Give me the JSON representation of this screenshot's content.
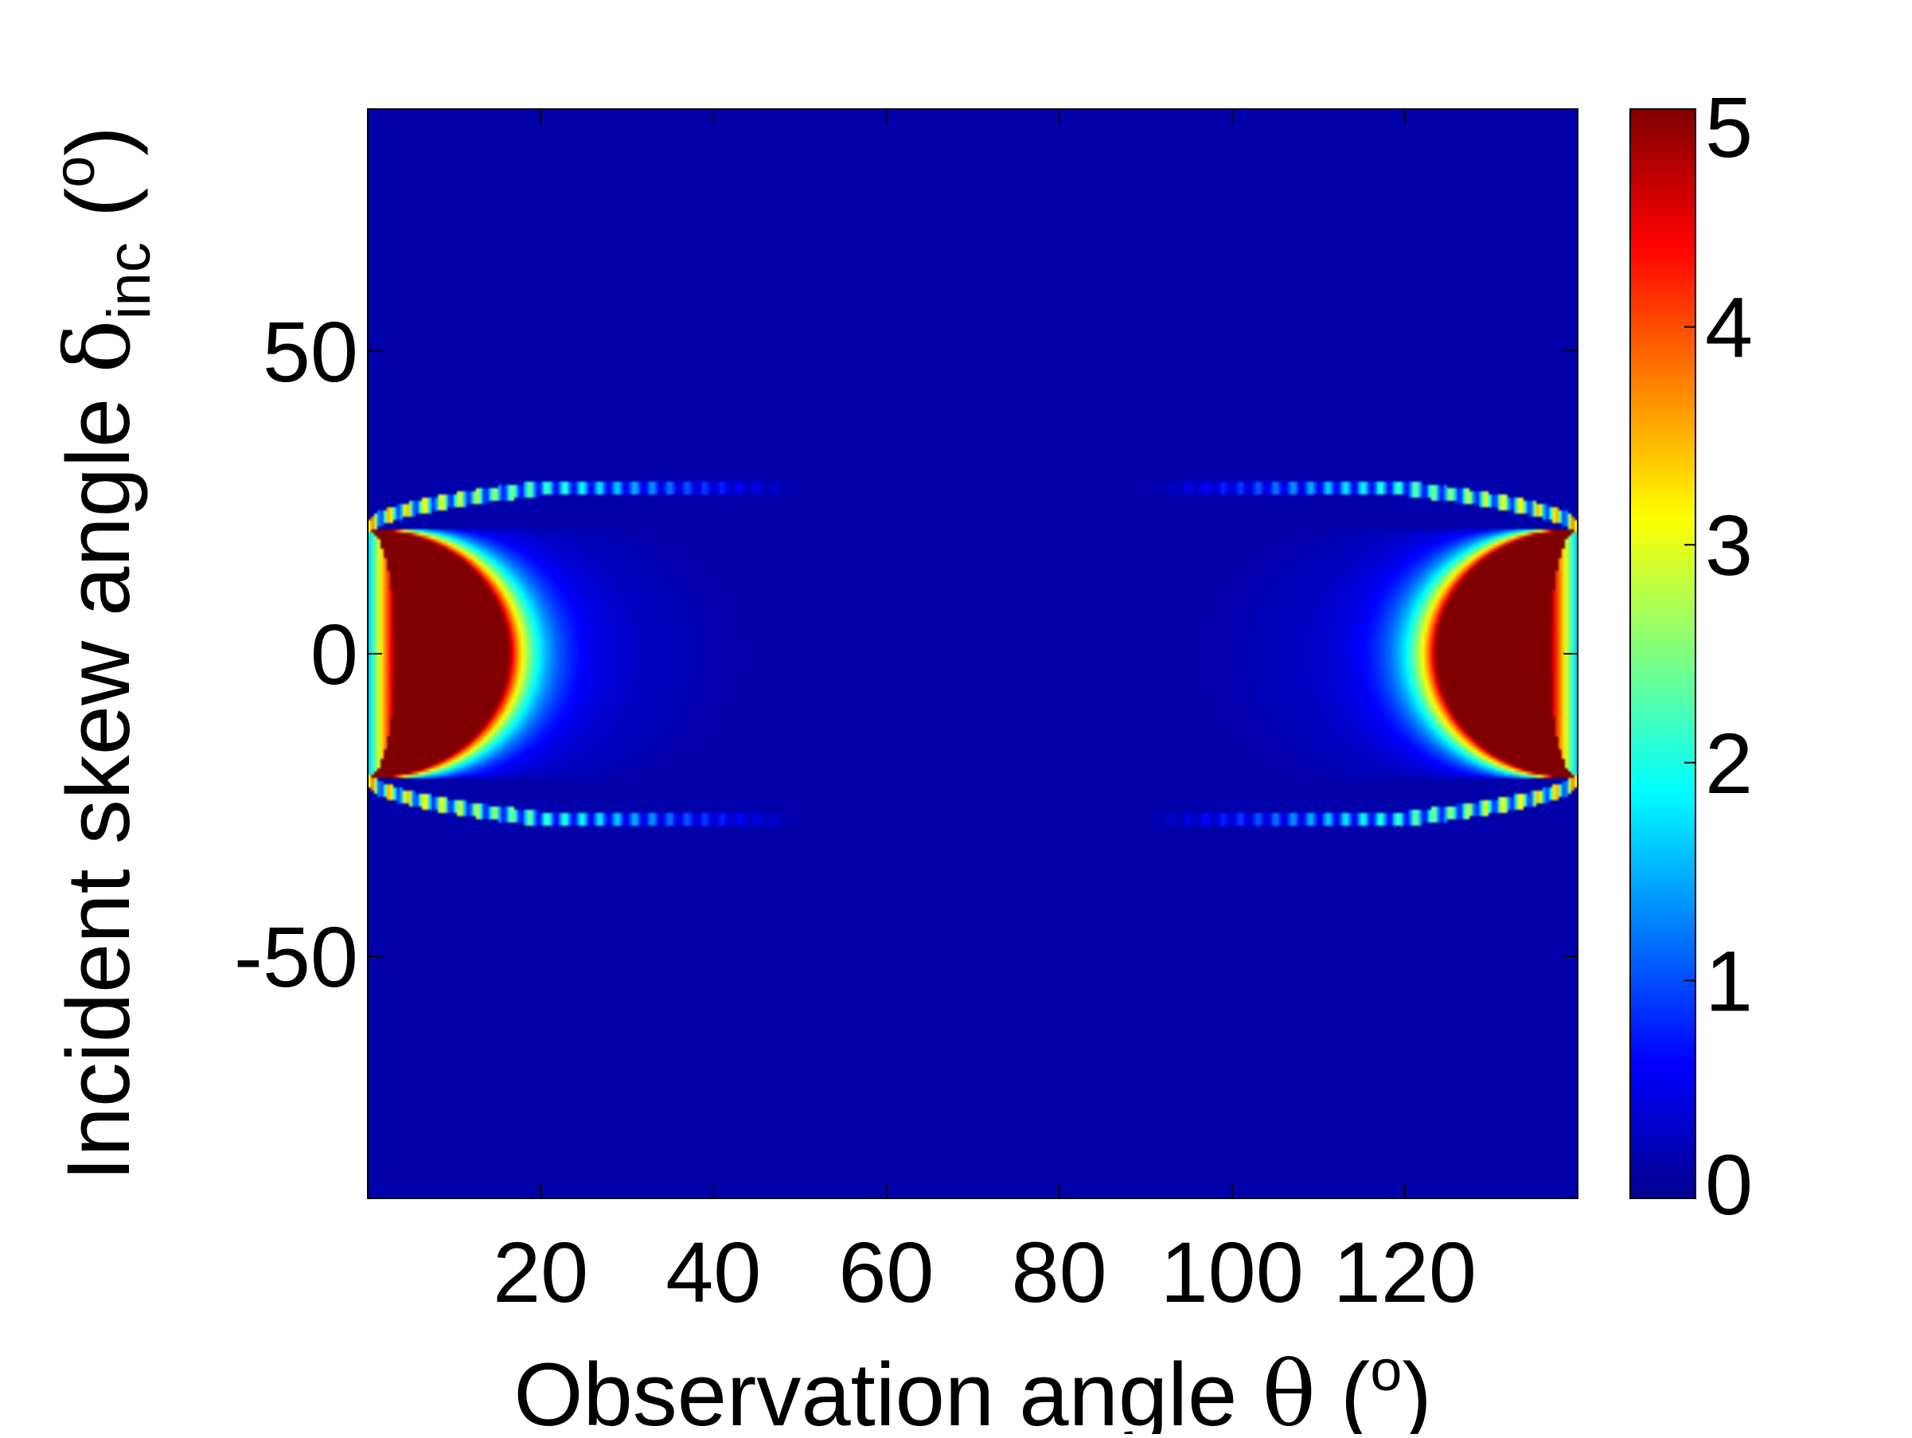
{
  "chart_data": {
    "type": "heatmap",
    "title": "",
    "xlabel": {
      "main": "Observation angle ",
      "symbol": "θ",
      "open": " (",
      "sup": "o",
      "close": ")"
    },
    "ylabel": {
      "main": "Incident skew angle ",
      "symbol": "δ",
      "sub": "inc",
      "open": " (",
      "sup": "o",
      "close": ")"
    },
    "xlim": [
      0,
      140
    ],
    "ylim": [
      -90,
      90
    ],
    "x_ticks": [
      20,
      40,
      60,
      80,
      100,
      120
    ],
    "x_tick_labels": [
      "20",
      "40",
      "60",
      "80",
      "100",
      "120"
    ],
    "y_ticks": [
      50,
      0,
      -50
    ],
    "y_tick_labels": [
      "50",
      "0",
      "-50"
    ],
    "colorbar": {
      "range": [
        0,
        5
      ],
      "ticks": [
        0,
        1,
        2,
        3,
        4,
        5
      ],
      "tick_labels": [
        "0",
        "1",
        "2",
        "3",
        "4",
        "5"
      ],
      "colormap": "jet"
    },
    "background_value": 0.15,
    "features": [
      {
        "name": "left-crescent",
        "side": "left",
        "x_edge": 0,
        "y_range": [
          -21,
          21
        ],
        "x_extent_at_zero": 16,
        "peak_value": 5
      },
      {
        "name": "right-crescent",
        "side": "right",
        "x_edge": 140,
        "y_range": [
          -21,
          21
        ],
        "x_extent_at_zero": 16,
        "peak_value": 5
      },
      {
        "name": "upper-ring",
        "y_center_left": 20,
        "y_center_mid": 27,
        "value": 1.8
      },
      {
        "name": "lower-ring",
        "y_center_left": -20,
        "y_center_mid": -27,
        "value": 1.8
      }
    ]
  }
}
